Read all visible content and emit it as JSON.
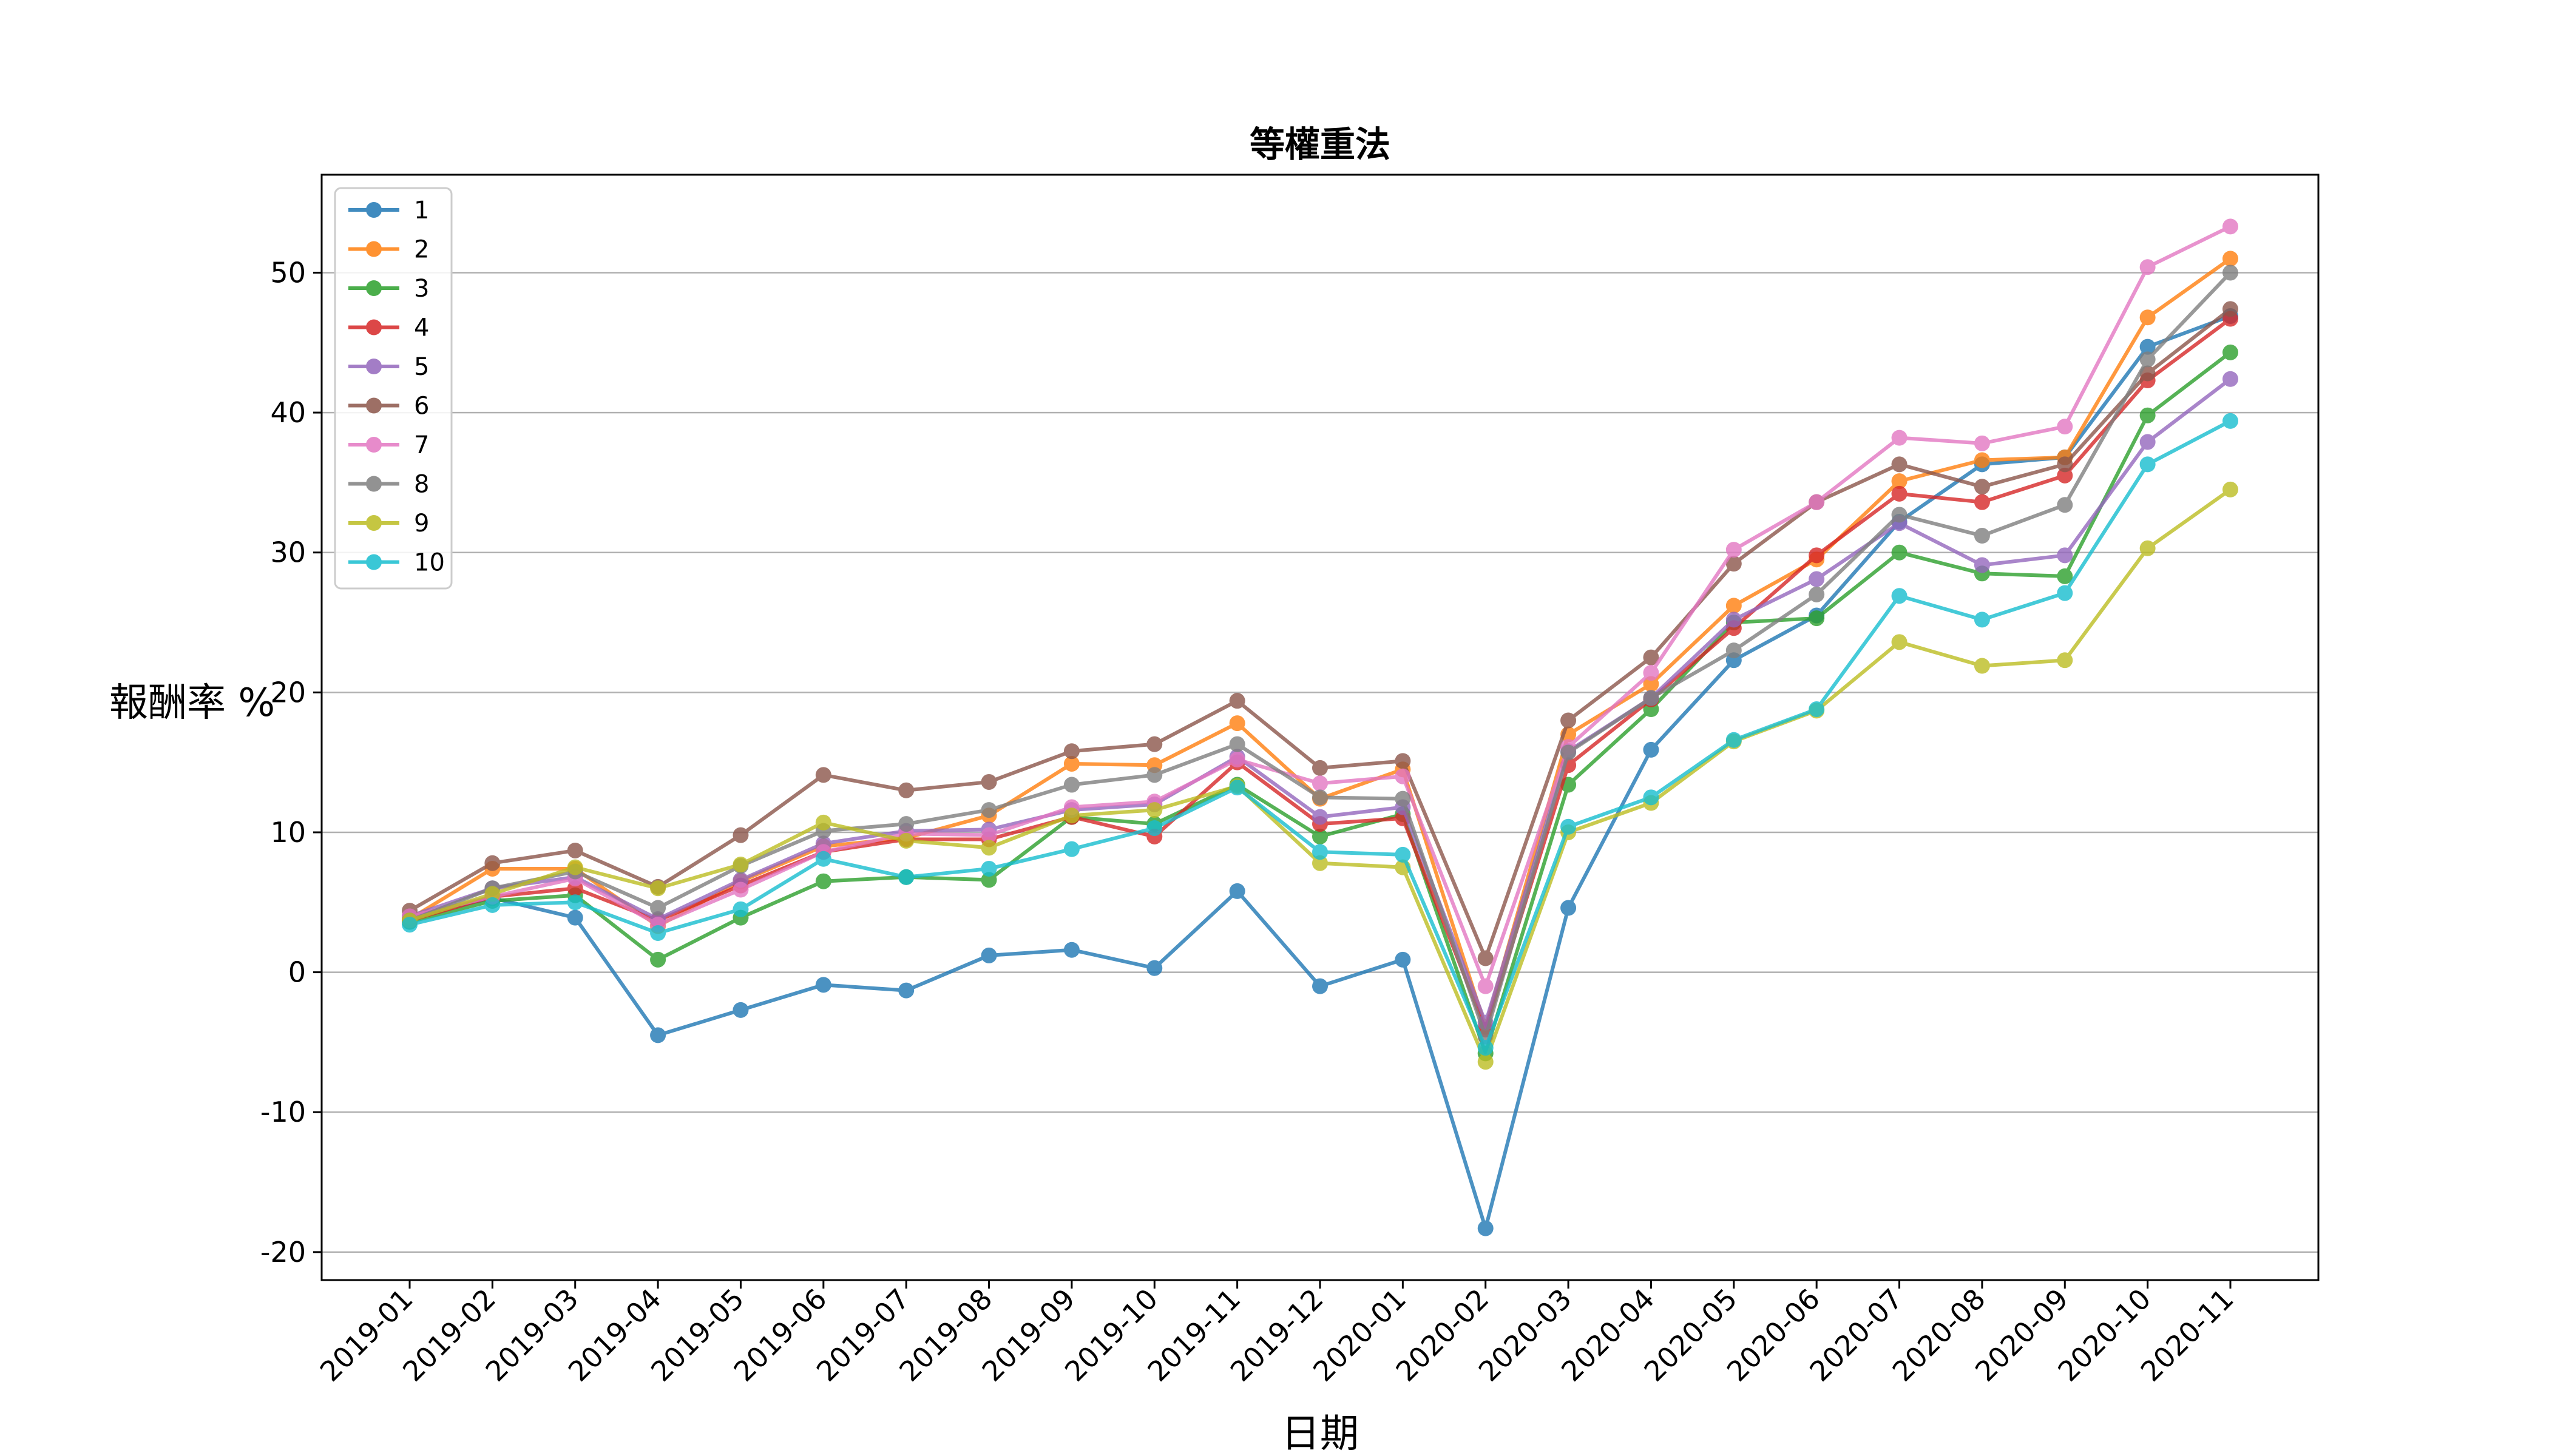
{
  "chart_data": {
    "type": "line",
    "title": "等權重法",
    "xlabel": "日期",
    "ylabel": "報酬率 %",
    "ylim": [
      -22,
      57
    ],
    "yticks": [
      -20,
      -10,
      0,
      10,
      20,
      30,
      40,
      50
    ],
    "grid": "y-major",
    "legend_placement": "upper-left",
    "categories": [
      "2019-01",
      "2019-02",
      "2019-03",
      "2019-04",
      "2019-05",
      "2019-06",
      "2019-07",
      "2019-08",
      "2019-09",
      "2019-10",
      "2019-11",
      "2019-12",
      "2020-01",
      "2020-02",
      "2020-03",
      "2020-04",
      "2020-05",
      "2020-06",
      "2020-07",
      "2020-08",
      "2020-09",
      "2020-10",
      "2020-11"
    ],
    "series": [
      {
        "name": "1",
        "color": "#1f77b4",
        "values": [
          4.0,
          5.3,
          3.9,
          -4.5,
          -2.7,
          -0.9,
          -1.3,
          1.2,
          1.6,
          0.3,
          5.8,
          -1.0,
          0.9,
          -18.3,
          4.6,
          15.9,
          22.3,
          25.5,
          32.2,
          36.3,
          36.8,
          44.7,
          46.9
        ]
      },
      {
        "name": "2",
        "color": "#ff7f0e",
        "values": [
          3.8,
          7.4,
          7.4,
          3.3,
          6.5,
          9.0,
          9.6,
          11.2,
          14.9,
          14.8,
          17.8,
          12.4,
          14.5,
          -3.9,
          17.0,
          20.6,
          26.2,
          29.5,
          35.1,
          36.6,
          36.8,
          46.8,
          51.0
        ]
      },
      {
        "name": "3",
        "color": "#2ca02c",
        "values": [
          3.6,
          5.1,
          5.5,
          0.9,
          3.9,
          6.5,
          6.8,
          6.6,
          11.1,
          10.6,
          13.4,
          9.7,
          11.3,
          -5.8,
          13.4,
          18.8,
          25.0,
          25.3,
          30.0,
          28.5,
          28.3,
          39.8,
          44.3
        ]
      },
      {
        "name": "4",
        "color": "#d62728",
        "values": [
          3.7,
          5.4,
          6.0,
          3.7,
          6.2,
          8.6,
          9.5,
          9.5,
          11.1,
          9.7,
          15.0,
          10.6,
          11.0,
          -4.1,
          14.8,
          19.5,
          24.6,
          29.8,
          34.2,
          33.6,
          35.5,
          42.3,
          46.7
        ]
      },
      {
        "name": "5",
        "color": "#9467bd",
        "values": [
          4.0,
          6.0,
          6.8,
          3.8,
          6.6,
          9.2,
          10.1,
          10.2,
          11.6,
          12.0,
          15.4,
          11.1,
          11.8,
          -3.6,
          15.8,
          19.6,
          25.2,
          28.1,
          32.1,
          29.1,
          29.8,
          37.9,
          42.4
        ]
      },
      {
        "name": "6",
        "color": "#8c564b",
        "values": [
          4.4,
          7.8,
          8.7,
          6.1,
          9.8,
          14.1,
          13.0,
          13.6,
          15.8,
          16.3,
          19.4,
          14.6,
          15.1,
          1.0,
          18.0,
          22.5,
          29.2,
          33.6,
          36.3,
          34.7,
          36.3,
          42.8,
          47.4
        ]
      },
      {
        "name": "7",
        "color": "#e377c2",
        "values": [
          4.0,
          5.4,
          6.7,
          3.4,
          5.9,
          8.6,
          9.9,
          9.8,
          11.8,
          12.2,
          15.2,
          13.5,
          14.0,
          -1.0,
          16.1,
          21.4,
          30.2,
          33.6,
          38.2,
          37.8,
          39.0,
          50.4,
          53.3
        ]
      },
      {
        "name": "8",
        "color": "#7f7f7f",
        "values": [
          3.7,
          6.0,
          7.2,
          4.6,
          7.6,
          10.1,
          10.6,
          11.6,
          13.4,
          14.1,
          16.3,
          12.5,
          12.4,
          -4.6,
          15.7,
          19.6,
          23.0,
          27.0,
          32.7,
          31.2,
          33.4,
          43.8,
          50.0
        ]
      },
      {
        "name": "9",
        "color": "#bcbd22",
        "values": [
          3.7,
          5.6,
          7.5,
          6.0,
          7.7,
          10.7,
          9.4,
          8.9,
          11.2,
          11.6,
          13.3,
          7.8,
          7.5,
          -6.4,
          10.0,
          12.1,
          16.5,
          18.7,
          23.6,
          21.9,
          22.3,
          30.3,
          34.5
        ]
      },
      {
        "name": "10",
        "color": "#17becf",
        "values": [
          3.4,
          4.8,
          5.0,
          2.8,
          4.5,
          8.1,
          6.8,
          7.4,
          8.8,
          10.3,
          13.2,
          8.6,
          8.4,
          -5.4,
          10.4,
          12.5,
          16.6,
          18.8,
          26.9,
          25.2,
          27.1,
          36.3,
          39.4
        ]
      }
    ]
  }
}
